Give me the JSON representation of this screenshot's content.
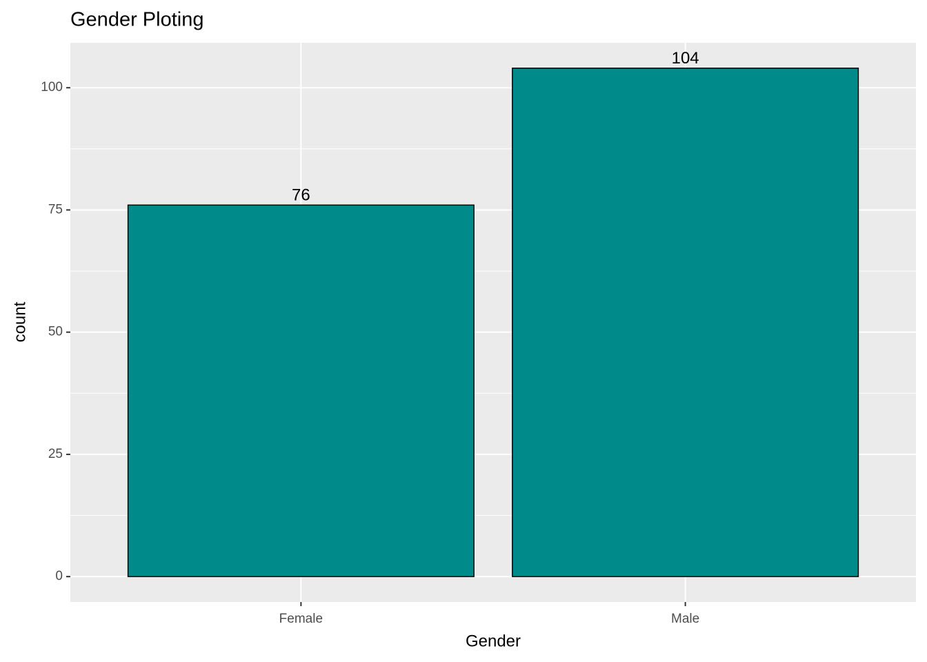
{
  "chart_data": {
    "type": "bar",
    "title": "Gender Ploting",
    "x_label": "Gender",
    "y_label": "count",
    "categories": [
      "Female",
      "Male"
    ],
    "values": [
      76,
      104
    ],
    "color": "#008b8b",
    "ylim": [
      -5.2,
      109.2
    ],
    "yticks": [
      0,
      25,
      50,
      75,
      100
    ],
    "grid": true
  }
}
